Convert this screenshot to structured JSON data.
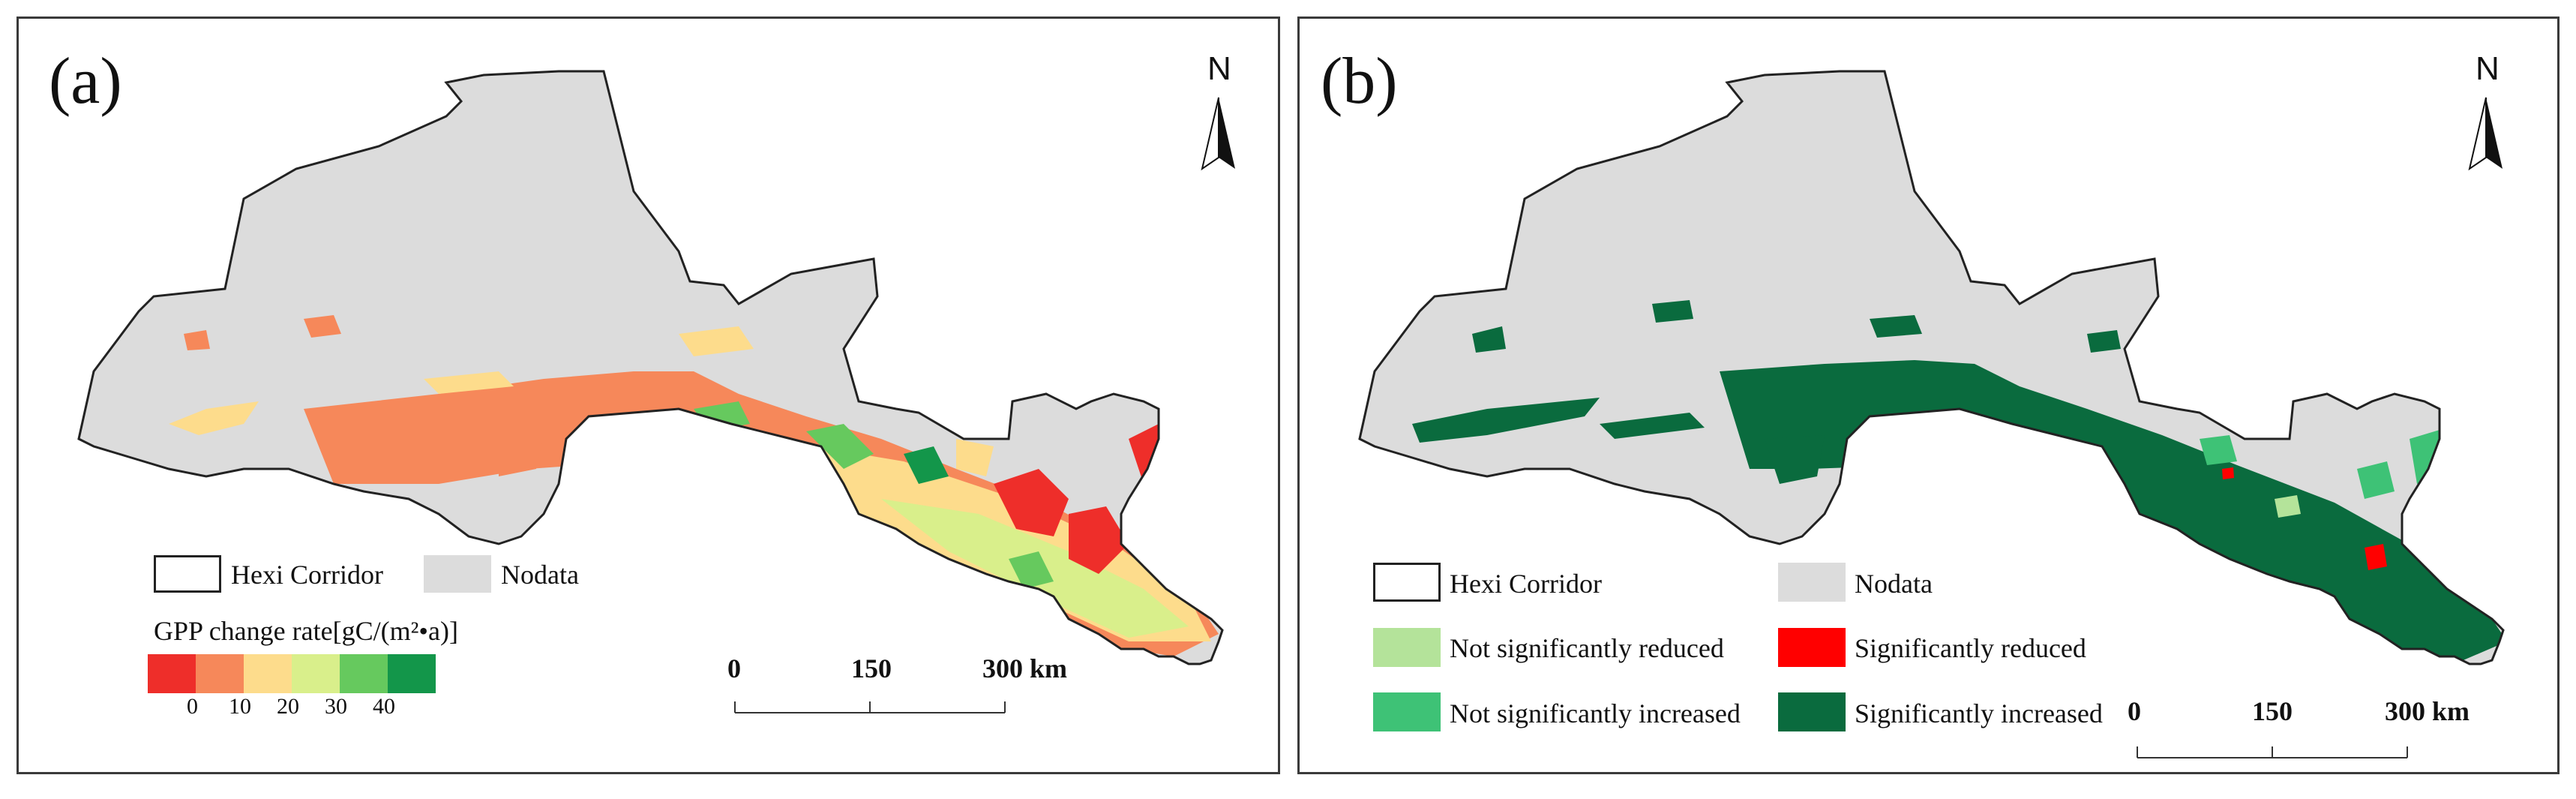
{
  "panels": [
    {
      "label": "(a)",
      "north": "N",
      "legend": {
        "boundary": "Hexi Corridor",
        "nodata": "Nodata",
        "ramp_title": "GPP change rate[gC/(m²•a)]",
        "ramp_colors": [
          "#ee2e2a",
          "#f6885a",
          "#fddc8c",
          "#d9ef8b",
          "#66c95e",
          "#13964a"
        ],
        "ramp_ticks": [
          "0",
          "10",
          "20",
          "30",
          "40"
        ]
      },
      "scale": {
        "ticks": [
          "0",
          "150",
          "300 km"
        ]
      }
    },
    {
      "label": "(b)",
      "north": "N",
      "legend": {
        "boundary": "Hexi Corridor",
        "nodata": "Nodata",
        "classes": [
          {
            "label": "Not significantly reduced",
            "color": "#b4e39a"
          },
          {
            "label": "Significantly reduced",
            "color": "#ff0000"
          },
          {
            "label": "Not significantly increased",
            "color": "#3ec276"
          },
          {
            "label": "Significantly increased",
            "color": "#0a6b3e"
          }
        ]
      },
      "scale": {
        "ticks": [
          "0",
          "150",
          "300 km"
        ]
      }
    }
  ],
  "colors": {
    "nodata": "#dcdcdc",
    "boundary": "#222222"
  }
}
